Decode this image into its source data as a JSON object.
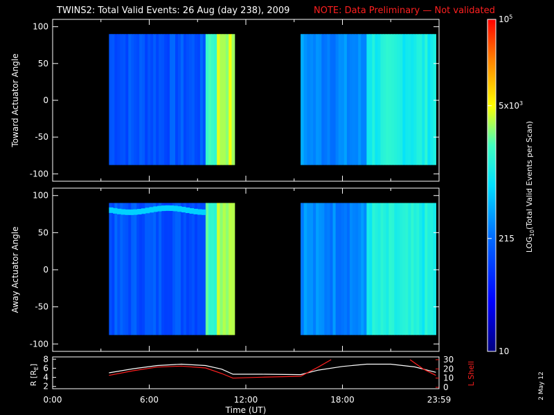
{
  "title": {
    "main": "TWINS2: Total Valid Events: 26 Aug (day 238), 2009",
    "note": "NOTE: Data Preliminary — Not validated",
    "note_color": "#ff2020"
  },
  "footer_date": "2 May 12",
  "chart_data": [
    {
      "type": "heatmap",
      "ylabel": "Toward Actuator Angle",
      "ylim": [
        -110,
        110
      ],
      "yticks": [
        "100",
        "50",
        "0",
        "-50",
        "-100"
      ],
      "ytick_values": [
        100,
        50,
        0,
        -50,
        -100
      ],
      "xlim_hours": [
        0,
        24
      ],
      "data_y_range": [
        -88,
        90
      ],
      "segments": [
        {
          "start_hour": 3.5,
          "end_hour": 9.5,
          "level": 0.3
        },
        {
          "start_hour": 9.5,
          "end_hour": 10.2,
          "level": 0.62
        },
        {
          "start_hour": 10.2,
          "end_hour": 11.3,
          "level": 0.7
        },
        {
          "start_hour": 15.4,
          "end_hour": 16.0,
          "level": 0.4
        },
        {
          "start_hour": 16.0,
          "end_hour": 19.5,
          "level": 0.38
        },
        {
          "start_hour": 19.5,
          "end_hour": 23.8,
          "level": 0.55
        }
      ]
    },
    {
      "type": "heatmap",
      "ylabel": "Away Actuator Angle",
      "ylim": [
        -110,
        110
      ],
      "yticks": [
        "100",
        "50",
        "0",
        "-50",
        "-100"
      ],
      "ytick_values": [
        100,
        50,
        0,
        -50,
        -100
      ],
      "xlim_hours": [
        0,
        24
      ],
      "data_y_range": [
        -88,
        90
      ],
      "segments": [
        {
          "start_hour": 3.5,
          "end_hour": 9.5,
          "level": 0.3
        },
        {
          "start_hour": 9.5,
          "end_hour": 10.2,
          "level": 0.62
        },
        {
          "start_hour": 10.2,
          "end_hour": 11.3,
          "level": 0.7
        },
        {
          "start_hour": 15.4,
          "end_hour": 16.0,
          "level": 0.4
        },
        {
          "start_hour": 16.0,
          "end_hour": 19.5,
          "level": 0.38
        },
        {
          "start_hour": 19.5,
          "end_hour": 23.8,
          "level": 0.55
        }
      ]
    },
    {
      "type": "line",
      "ylabel": "R [R",
      "ylabel_sub": "E",
      "ylabel_end": "]",
      "ylim": [
        1.5,
        8.5
      ],
      "yticks": [
        "8",
        "6",
        "4",
        "2"
      ],
      "ytick_values": [
        8,
        6,
        4,
        2
      ],
      "y2label": "L Shell",
      "y2lim": [
        0,
        30
      ],
      "y2ticks": [
        "30",
        "20",
        "10",
        "0"
      ],
      "y2tick_values": [
        30,
        20,
        10,
        0
      ],
      "xlabel": "Time (UT)",
      "xticks": [
        "0:00",
        "6:00",
        "12:00",
        "18:00",
        "23:59"
      ],
      "xtick_hours": [
        0,
        6,
        12,
        18,
        24
      ],
      "series": [
        {
          "axis": "R",
          "color": "#ffffff",
          "x": [
            3.5,
            5,
            6.5,
            8,
            9.5,
            10.5,
            11.2,
            13,
            15.4,
            16.5,
            18,
            19.5,
            21,
            22.5,
            23.8
          ],
          "y": [
            5.0,
            5.9,
            6.6,
            6.9,
            6.6,
            5.8,
            4.7,
            4.7,
            4.6,
            5.6,
            6.4,
            6.9,
            6.9,
            6.3,
            5.1
          ]
        },
        {
          "axis": "L",
          "color": "#ff2020",
          "x": [
            3.5,
            5,
            6.5,
            8,
            9.5,
            10.5,
            11.2,
            13,
            15.4,
            16.5,
            17.3
          ],
          "y": [
            13,
            18,
            22,
            23,
            21,
            15,
            10,
            11,
            12,
            22,
            30
          ]
        },
        {
          "axis": "L",
          "color": "#ff2020",
          "x": [
            22.2,
            23.0,
            23.8
          ],
          "y": [
            30,
            20,
            13
          ]
        }
      ]
    }
  ],
  "colorbar": {
    "label": "LOG",
    "label_sub": "10",
    "label_rest": "(Total Valid  Events per Scan)",
    "ticks": [
      {
        "base": "10",
        "exp": "5",
        "level": 1.0
      },
      {
        "base": "5x10",
        "exp": "3",
        "level": 0.74
      },
      {
        "base": "215",
        "exp": "",
        "level": 0.34
      },
      {
        "base": "10",
        "exp": "",
        "level": 0.0
      }
    ]
  }
}
